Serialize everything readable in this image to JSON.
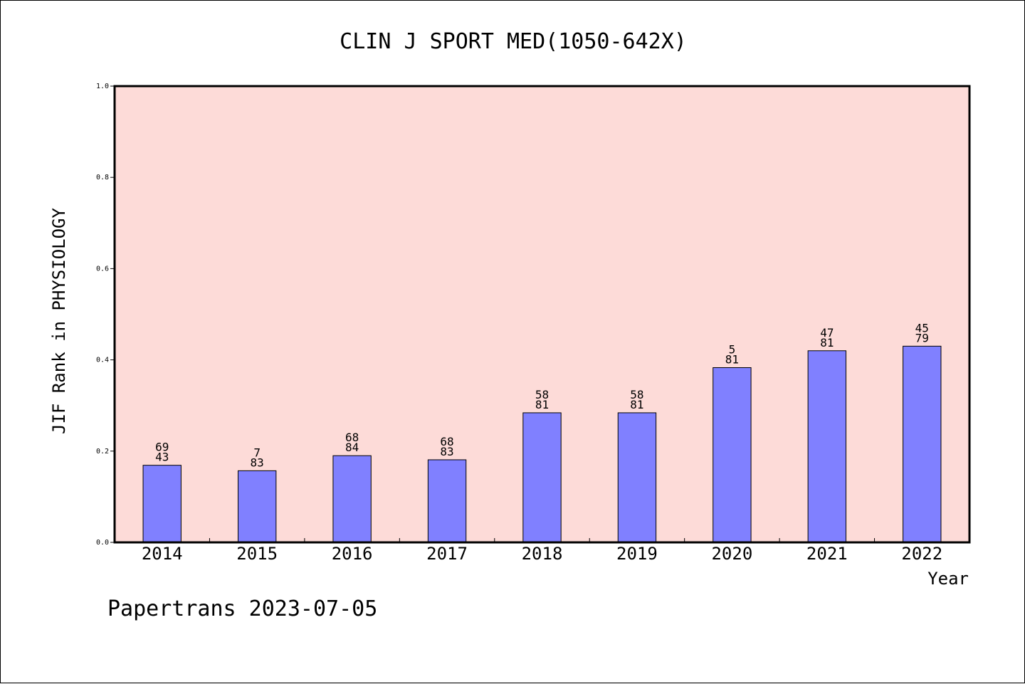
{
  "chart_data": {
    "type": "bar",
    "title": "CLIN J SPORT MED(1050-642X)",
    "xlabel": "Year",
    "ylabel": "JIF Rank in PHYSIOLOGY",
    "ylim": [
      0,
      1.0
    ],
    "yticks": [
      "0.0",
      "0.2",
      "0.4",
      "0.6",
      "0.8",
      "1.0"
    ],
    "categories": [
      "2014",
      "2015",
      "2016",
      "2017",
      "2018",
      "2019",
      "2020",
      "2021",
      "2022"
    ],
    "values": [
      0.169,
      0.157,
      0.19,
      0.181,
      0.284,
      0.284,
      0.383,
      0.42,
      0.43
    ],
    "labels": [
      [
        "69",
        "43"
      ],
      [
        "7",
        "83"
      ],
      [
        "68",
        "84"
      ],
      [
        "68",
        "83"
      ],
      [
        "58",
        "81"
      ],
      [
        "58",
        "81"
      ],
      [
        "5",
        "81"
      ],
      [
        "47",
        "81"
      ],
      [
        "45",
        "79"
      ]
    ],
    "grid": false,
    "colors": {
      "plot_background": "#fddbd8",
      "bar_fill": "#8080ff",
      "bar_stroke": "#000000"
    }
  },
  "footer": "Papertrans 2023-07-05"
}
